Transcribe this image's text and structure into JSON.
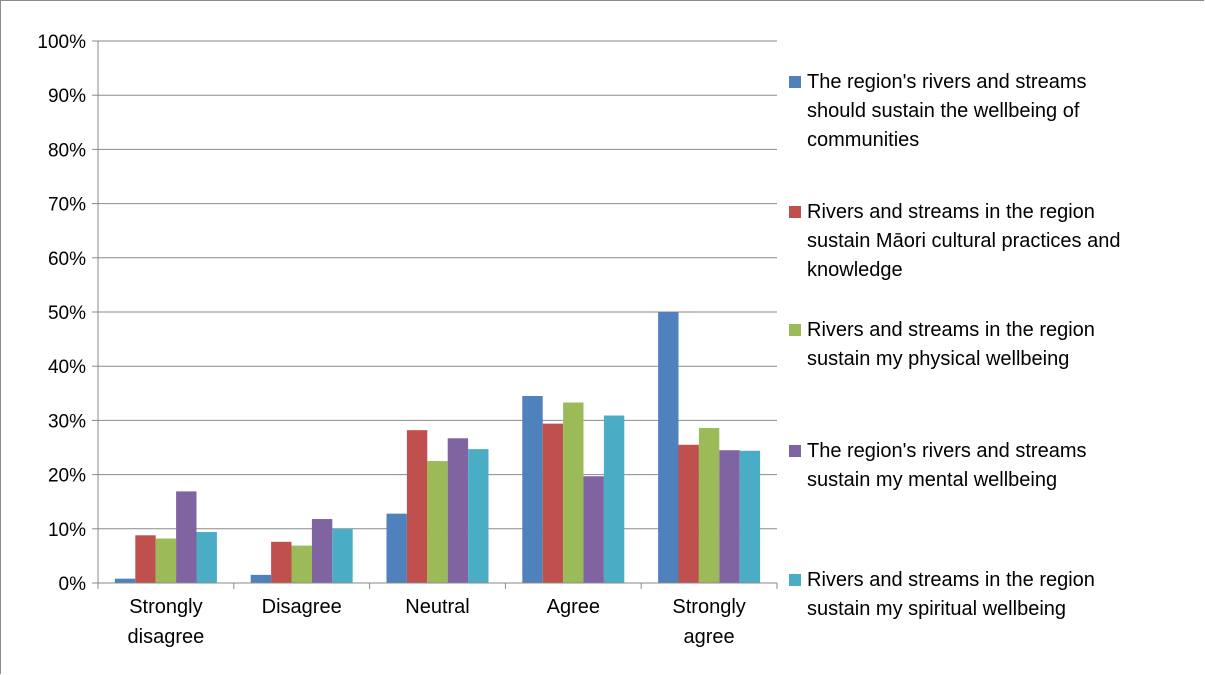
{
  "chart_data": {
    "type": "bar",
    "categories": [
      [
        "Strongly",
        "disagree"
      ],
      [
        "Disagree"
      ],
      [
        "Neutral"
      ],
      [
        "Agree"
      ],
      [
        "Strongly",
        "agree"
      ]
    ],
    "ylim": [
      0,
      100
    ],
    "yticks": [
      "0%",
      "10%",
      "20%",
      "30%",
      "40%",
      "50%",
      "60%",
      "70%",
      "80%",
      "90%",
      "100%"
    ],
    "grid": true,
    "legend_position": "right",
    "series": [
      {
        "name": [
          "The region's rivers and streams",
          "should sustain the wellbeing of",
          "communities"
        ],
        "color": "#4f81bd",
        "values": [
          0.8,
          1.5,
          12.8,
          34.5,
          50.0
        ]
      },
      {
        "name": [
          "Rivers and streams in the region",
          "sustain Māori cultural practices and",
          "knowledge"
        ],
        "color": "#c0504d",
        "values": [
          8.8,
          7.6,
          28.2,
          29.4,
          25.5
        ]
      },
      {
        "name": [
          "Rivers and streams in the region",
          "sustain my physical wellbeing"
        ],
        "color": "#9bbb59",
        "values": [
          8.2,
          6.9,
          22.5,
          33.3,
          28.6
        ]
      },
      {
        "name": [
          "The region's rivers and streams",
          "sustain my mental wellbeing"
        ],
        "color": "#8064a2",
        "values": [
          16.9,
          11.8,
          26.7,
          19.7,
          24.5
        ]
      },
      {
        "name": [
          "Rivers and streams in the region",
          "sustain my spiritual wellbeing"
        ],
        "color": "#4bacc6",
        "values": [
          9.4,
          10.0,
          24.7,
          30.9,
          24.4
        ]
      }
    ]
  }
}
